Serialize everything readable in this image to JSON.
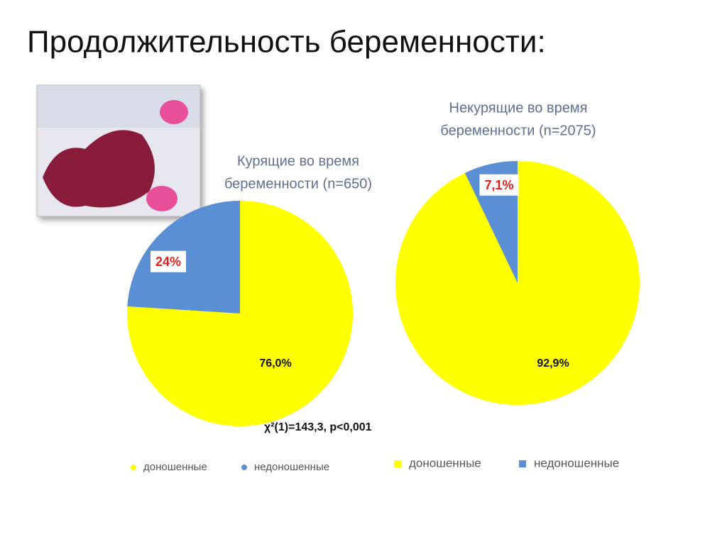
{
  "title": "Продолжительность беременности:",
  "note": "χ²(1)=143,3, p<0,001",
  "chart_data": [
    {
      "type": "pie",
      "title": [
        "Курящие во время",
        "беременности (n=650)"
      ],
      "categories": [
        "доношенные",
        "недоношенные"
      ],
      "values": [
        76.0,
        24
      ],
      "value_labels": [
        "76,0%",
        "24%"
      ],
      "colors": [
        "#ffff00",
        "#5b8fd4"
      ]
    },
    {
      "type": "pie",
      "title": [
        "Некурящие во время",
        "беременности (n=2075)"
      ],
      "categories": [
        "доношенные",
        "недоношенные"
      ],
      "values": [
        92.9,
        7.1
      ],
      "value_labels": [
        "92,9%",
        "7,1%"
      ],
      "colors": [
        "#ffff00",
        "#5b8fd4"
      ]
    }
  ]
}
